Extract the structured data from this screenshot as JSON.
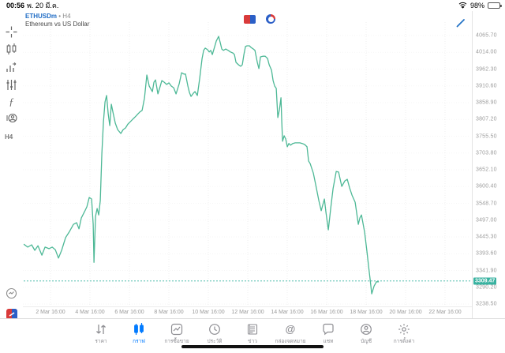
{
  "status_bar": {
    "time": "00:56",
    "date": "พ. 20 มี.ค.",
    "battery_percent": "98%"
  },
  "chart_header": {
    "symbol": "ETHUSDm",
    "separator": "•",
    "timeframe": "H4",
    "description": "Ethereum vs US Dollar"
  },
  "sidebar": {
    "icons": [
      "crosshair-icon",
      "chart-type-candles-icon",
      "indicators-bars-icon",
      "objects-sliders-icon",
      "function-icon",
      "objects-profile-icon"
    ],
    "timeframe_label": "H4"
  },
  "colors": {
    "line": "#4db896",
    "accent": "#007aff",
    "price_badge": "#38b2a0",
    "grid": "#ececec"
  },
  "price_axis": {
    "ticks": [
      "4065.70",
      "4014.00",
      "3962.30",
      "3910.60",
      "3858.90",
      "3807.20",
      "3755.50",
      "3703.80",
      "3652.10",
      "3600.40",
      "3548.70",
      "3497.00",
      "3445.30",
      "3393.60",
      "3341.90",
      "3290.20",
      "3238.50"
    ],
    "current_price": "3309.47"
  },
  "time_axis": {
    "ticks": [
      "2 Mar 16:00",
      "4 Mar 16:00",
      "6 Mar 16:00",
      "8 Mar 16:00",
      "10 Mar 16:00",
      "12 Mar 16:00",
      "14 Mar 16:00",
      "16 Mar 16:00",
      "18 Mar 16:00",
      "20 Mar 16:00",
      "22 Mar 16:00"
    ]
  },
  "toolbar": {
    "items": [
      {
        "label": "ราคา",
        "icon": "quotes-icon",
        "active": false
      },
      {
        "label": "กราฟ",
        "icon": "charts-icon",
        "active": true
      },
      {
        "label": "การซื้อขาย",
        "icon": "trade-icon",
        "active": false
      },
      {
        "label": "ประวัติ",
        "icon": "history-icon",
        "active": false
      },
      {
        "label": "ข่าว",
        "icon": "news-icon",
        "active": false
      },
      {
        "label": "กล่องจดหมาย",
        "icon": "mailbox-icon",
        "active": false
      },
      {
        "label": "แชท",
        "icon": "chat-icon",
        "active": false
      },
      {
        "label": "บัญชี",
        "icon": "account-icon",
        "active": false
      },
      {
        "label": "การตั้งค่า",
        "icon": "settings-icon",
        "active": false
      }
    ]
  },
  "chart_data": {
    "type": "line",
    "title": "Ethereum vs US Dollar",
    "symbol": "ETHUSDm",
    "timeframe": "H4",
    "current_price": 3309.47,
    "ylabel": "",
    "xlabel": "",
    "y_ticks": [
      4065.7,
      4014.0,
      3962.3,
      3910.6,
      3858.9,
      3807.2,
      3755.5,
      3703.8,
      3652.1,
      3600.4,
      3548.7,
      3497.0,
      3445.3,
      3393.6,
      3341.9,
      3290.2,
      3238.5
    ],
    "x_ticks_days_march": [
      2.667,
      4.667,
      6.667,
      8.667,
      10.667,
      12.667,
      14.667,
      16.667,
      18.667,
      20.667,
      22.667
    ],
    "series": [
      [
        1.31,
        3423
      ],
      [
        1.51,
        3414
      ],
      [
        1.71,
        3421
      ],
      [
        1.87,
        3404
      ],
      [
        2.03,
        3418
      ],
      [
        2.23,
        3389
      ],
      [
        2.39,
        3414
      ],
      [
        2.59,
        3409
      ],
      [
        2.75,
        3414
      ],
      [
        2.91,
        3406
      ],
      [
        3.07,
        3380
      ],
      [
        3.23,
        3404
      ],
      [
        3.43,
        3443
      ],
      [
        3.63,
        3462
      ],
      [
        3.83,
        3484
      ],
      [
        3.99,
        3489
      ],
      [
        4.11,
        3470
      ],
      [
        4.23,
        3504
      ],
      [
        4.39,
        3523
      ],
      [
        4.51,
        3538
      ],
      [
        4.63,
        3567
      ],
      [
        4.75,
        3562
      ],
      [
        4.83,
        3484
      ],
      [
        4.87,
        3367
      ],
      [
        4.95,
        3509
      ],
      [
        5.03,
        3533
      ],
      [
        5.11,
        3513
      ],
      [
        5.19,
        3557
      ],
      [
        5.27,
        3703
      ],
      [
        5.35,
        3800
      ],
      [
        5.43,
        3861
      ],
      [
        5.51,
        3881
      ],
      [
        5.59,
        3825
      ],
      [
        5.67,
        3788
      ],
      [
        5.75,
        3854
      ],
      [
        5.83,
        3830
      ],
      [
        5.95,
        3796
      ],
      [
        6.07,
        3776
      ],
      [
        6.23,
        3764
      ],
      [
        6.35,
        3776
      ],
      [
        6.47,
        3781
      ],
      [
        6.59,
        3793
      ],
      [
        6.71,
        3800
      ],
      [
        6.87,
        3810
      ],
      [
        6.99,
        3817
      ],
      [
        7.11,
        3825
      ],
      [
        7.19,
        3830
      ],
      [
        7.31,
        3835
      ],
      [
        7.43,
        3873
      ],
      [
        7.55,
        3944
      ],
      [
        7.67,
        3910
      ],
      [
        7.83,
        3893
      ],
      [
        7.91,
        3922
      ],
      [
        7.99,
        3929
      ],
      [
        8.11,
        3886
      ],
      [
        8.23,
        3910
      ],
      [
        8.31,
        3927
      ],
      [
        8.43,
        3922
      ],
      [
        8.55,
        3915
      ],
      [
        8.67,
        3920
      ],
      [
        8.79,
        3910
      ],
      [
        8.91,
        3905
      ],
      [
        9.03,
        3886
      ],
      [
        9.19,
        3917
      ],
      [
        9.31,
        3951
      ],
      [
        9.43,
        3947
      ],
      [
        9.51,
        3947
      ],
      [
        9.63,
        3910
      ],
      [
        9.71,
        3890
      ],
      [
        9.79,
        3878
      ],
      [
        9.91,
        3888
      ],
      [
        9.99,
        3893
      ],
      [
        10.11,
        3881
      ],
      [
        10.23,
        3934
      ],
      [
        10.35,
        3995
      ],
      [
        10.43,
        4020
      ],
      [
        10.51,
        4027
      ],
      [
        10.63,
        4022
      ],
      [
        10.71,
        4015
      ],
      [
        10.79,
        4020
      ],
      [
        10.87,
        4007
      ],
      [
        10.99,
        4032
      ],
      [
        11.07,
        4049
      ],
      [
        11.19,
        4063
      ],
      [
        11.27,
        4044
      ],
      [
        11.35,
        4024
      ],
      [
        11.43,
        4020
      ],
      [
        11.55,
        4024
      ],
      [
        11.67,
        4020
      ],
      [
        11.79,
        4015
      ],
      [
        11.91,
        4012
      ],
      [
        11.99,
        4007
      ],
      [
        12.07,
        3983
      ],
      [
        12.19,
        3976
      ],
      [
        12.31,
        3971
      ],
      [
        12.39,
        3976
      ],
      [
        12.47,
        4007
      ],
      [
        12.55,
        4032
      ],
      [
        12.63,
        4034
      ],
      [
        12.75,
        4034
      ],
      [
        12.83,
        4029
      ],
      [
        12.95,
        4024
      ],
      [
        13.03,
        4020
      ],
      [
        13.15,
        3983
      ],
      [
        13.23,
        3964
      ],
      [
        13.31,
        4000
      ],
      [
        13.43,
        4002
      ],
      [
        13.55,
        4002
      ],
      [
        13.67,
        3995
      ],
      [
        13.75,
        3976
      ],
      [
        13.87,
        3959
      ],
      [
        13.95,
        3927
      ],
      [
        14.03,
        3910
      ],
      [
        14.11,
        3903
      ],
      [
        14.19,
        3813
      ],
      [
        14.27,
        3837
      ],
      [
        14.35,
        3874
      ],
      [
        14.39,
        3800
      ],
      [
        14.43,
        3740
      ],
      [
        14.51,
        3757
      ],
      [
        14.59,
        3747
      ],
      [
        14.67,
        3723
      ],
      [
        14.75,
        3733
      ],
      [
        14.83,
        3728
      ],
      [
        14.95,
        3733
      ],
      [
        15.07,
        3735
      ],
      [
        15.19,
        3735
      ],
      [
        15.31,
        3735
      ],
      [
        15.43,
        3733
      ],
      [
        15.55,
        3730
      ],
      [
        15.67,
        3723
      ],
      [
        15.75,
        3679
      ],
      [
        15.83,
        3671
      ],
      [
        15.99,
        3642
      ],
      [
        16.11,
        3606
      ],
      [
        16.27,
        3557
      ],
      [
        16.39,
        3526
      ],
      [
        16.55,
        3562
      ],
      [
        16.63,
        3521
      ],
      [
        16.75,
        3467
      ],
      [
        16.87,
        3533
      ],
      [
        16.99,
        3594
      ],
      [
        17.15,
        3647
      ],
      [
        17.27,
        3645
      ],
      [
        17.43,
        3601
      ],
      [
        17.59,
        3618
      ],
      [
        17.71,
        3623
      ],
      [
        17.83,
        3596
      ],
      [
        17.95,
        3574
      ],
      [
        18.11,
        3552
      ],
      [
        18.27,
        3484
      ],
      [
        18.35,
        3504
      ],
      [
        18.43,
        3513
      ],
      [
        18.59,
        3460
      ],
      [
        18.71,
        3399
      ],
      [
        18.79,
        3355
      ],
      [
        18.87,
        3314
      ],
      [
        18.95,
        3270
      ],
      [
        19.07,
        3294
      ],
      [
        19.19,
        3307
      ],
      [
        19.31,
        3307
      ]
    ]
  }
}
